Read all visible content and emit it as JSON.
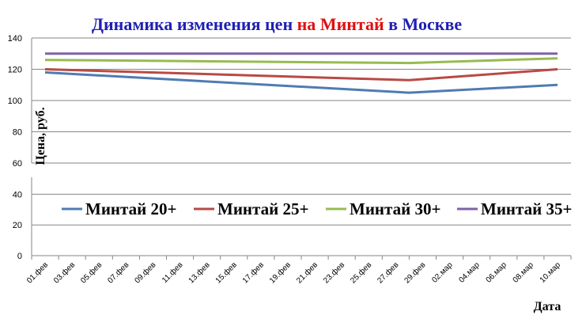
{
  "chart_data": {
    "type": "line",
    "title_parts": [
      {
        "text": "Динамика изменения цен ",
        "color": "#1f1fb4"
      },
      {
        "text": "на Минтай",
        "color": "#e01010"
      },
      {
        "text": " в Москве",
        "color": "#1f1fb4"
      }
    ],
    "xlabel": "Дата",
    "ylabel": "Цена, руб.",
    "x_ticks": [
      "01.фев",
      "03.фев",
      "05.фев",
      "07.фев",
      "09.фев",
      "11.фев",
      "13.фев",
      "15.фев",
      "17.фев",
      "19.фев",
      "21.фев",
      "23.фев",
      "25.фев",
      "27.фев",
      "29.фев",
      "02.мар",
      "04.мар",
      "06.мар",
      "08.мар",
      "10.мар"
    ],
    "y_ticks_upper": [
      60,
      80,
      100,
      120,
      140
    ],
    "y_ticks_lower": [
      0,
      20,
      40
    ],
    "y_axis_break": [
      50,
      60
    ],
    "ylim": [
      0,
      140
    ],
    "grid": true,
    "legend_position": "center",
    "series": [
      {
        "name": "Минтай 20+",
        "color": "#4f7bb3",
        "points": [
          [
            "01.фев",
            118
          ],
          [
            "28.фев",
            105
          ],
          [
            "10.мар",
            110
          ]
        ]
      },
      {
        "name": "Минтай 25+",
        "color": "#b84a46",
        "points": [
          [
            "01.фев",
            120
          ],
          [
            "28.фев",
            113
          ],
          [
            "10.мар",
            120
          ]
        ]
      },
      {
        "name": "Минтай 30+",
        "color": "#97bb52",
        "points": [
          [
            "01.фев",
            126
          ],
          [
            "28.фев",
            124
          ],
          [
            "10.мар",
            127
          ]
        ]
      },
      {
        "name": "Минтай 35+",
        "color": "#7e62a6",
        "points": [
          [
            "01.фев",
            130
          ],
          [
            "28.фев",
            130
          ],
          [
            "10.мар",
            130
          ]
        ]
      }
    ]
  }
}
